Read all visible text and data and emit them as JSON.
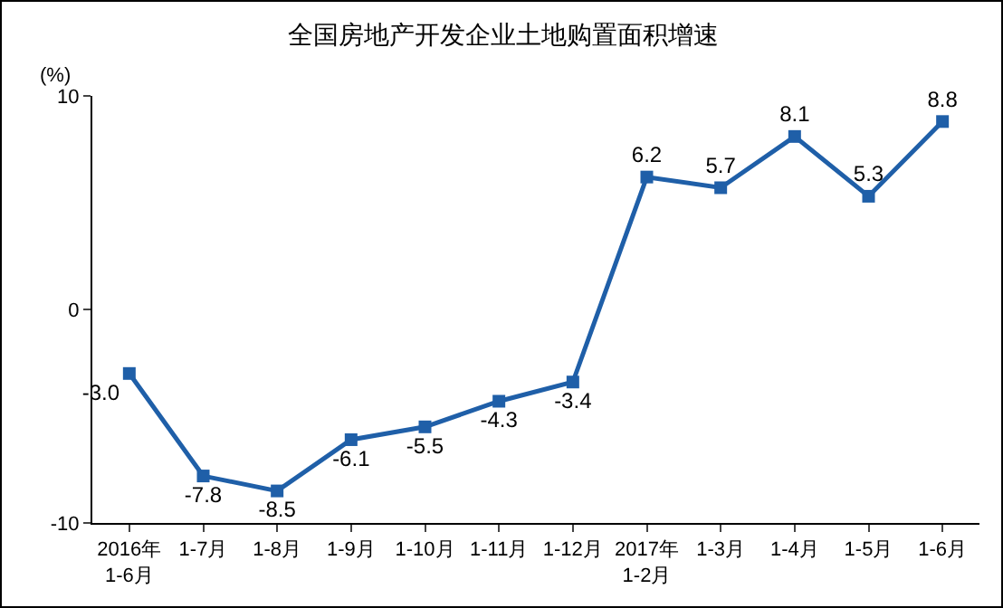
{
  "chart_data": {
    "type": "line",
    "title": "全国房地产开发企业土地购置面积增速",
    "ylabel": "(%)",
    "categories": [
      "2016年\n1-6月",
      "1-7月",
      "1-8月",
      "1-9月",
      "1-10月",
      "1-11月",
      "1-12月",
      "2017年\n1-2月",
      "1-3月",
      "1-4月",
      "1-5月",
      "1-6月"
    ],
    "series": [
      {
        "color": "#1f5fa8",
        "values": [
          -3.0,
          -7.8,
          -8.5,
          -6.1,
          -5.5,
          -4.3,
          -3.4,
          6.2,
          5.7,
          8.1,
          5.3,
          8.8
        ],
        "value_labels": [
          "-3.0",
          "-7.8",
          "-8.5",
          "-6.1",
          "-5.5",
          "-4.3",
          "-3.4",
          "6.2",
          "5.7",
          "8.1",
          "5.3",
          "8.8"
        ]
      }
    ],
    "ylim": [
      -10,
      10
    ],
    "yticks": [
      -10,
      0,
      10
    ],
    "grid": false,
    "marker": "square",
    "line_style": "solid"
  }
}
